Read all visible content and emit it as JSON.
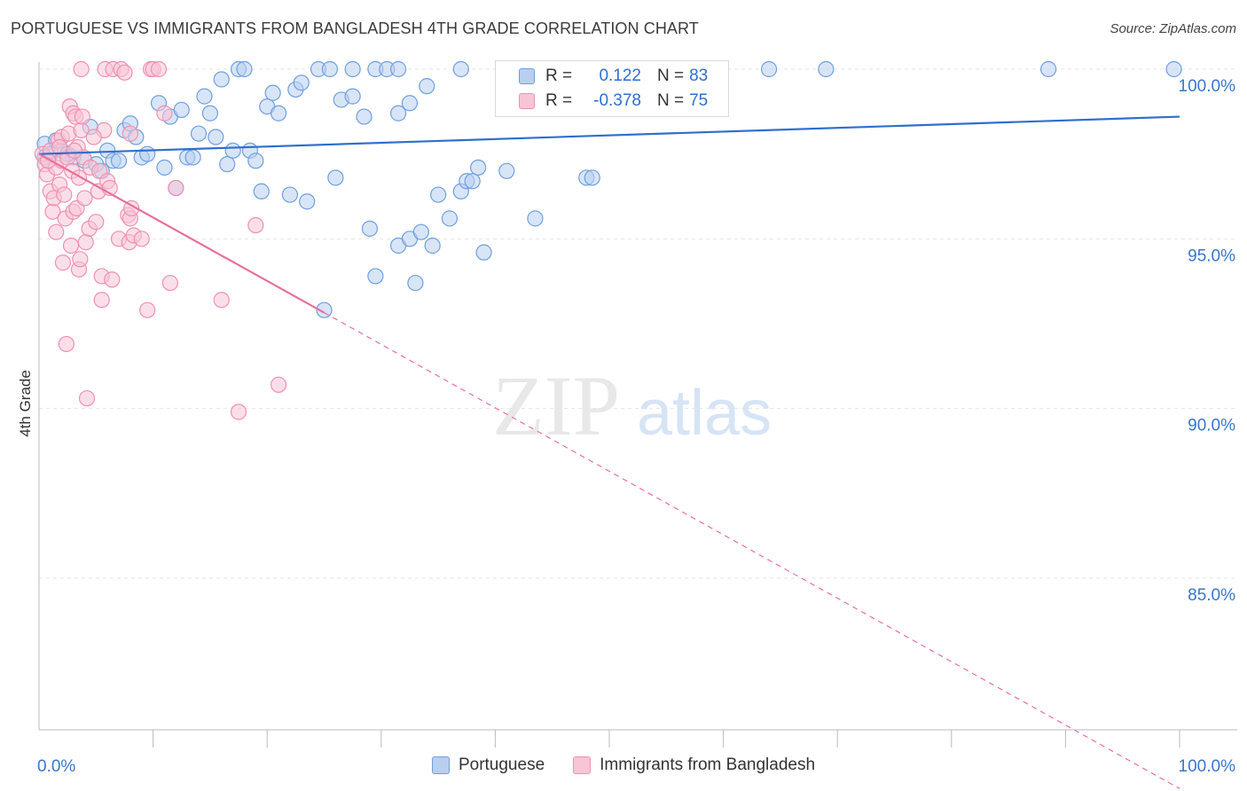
{
  "title": "PORTUGUESE VS IMMIGRANTS FROM BANGLADESH 4TH GRADE CORRELATION CHART",
  "source": "Source: ZipAtlas.com",
  "watermark": {
    "zip": "ZIP",
    "atlas": "atlas"
  },
  "legend_top": [
    {
      "r_label": "R =",
      "r_value": "0.122",
      "n_label": "N =",
      "n_value": "83",
      "color": "#6f9fe0"
    },
    {
      "r_label": "R =",
      "r_value": "-0.378",
      "n_label": "N =",
      "n_value": "75",
      "color": "#f090b0"
    }
  ],
  "legend_bottom": [
    {
      "label": "Portuguese",
      "color": "#6f9fe0"
    },
    {
      "label": "Immigrants from Bangladesh",
      "color": "#f090b0"
    }
  ],
  "colors": {
    "blue": "#2f6fce",
    "blue_fill": "#b8cff0",
    "pink": "#e8709a",
    "pink_fill": "#f8c4d6",
    "tick_label": "#3a76cc",
    "grid": "#e6e6e6"
  },
  "chart_data": {
    "type": "scatter",
    "title": "PORTUGUESE VS IMMIGRANTS FROM BANGLADESH 4TH GRADE CORRELATION CHART",
    "xlabel": "",
    "ylabel": "4th Grade",
    "xlim": [
      0,
      100
    ],
    "ylim": [
      80.5,
      100.5
    ],
    "x_tick_labels": [
      {
        "value": 0,
        "label": "0.0%"
      },
      {
        "value": 100,
        "label": "100.0%"
      }
    ],
    "y_ticks": [
      {
        "value": 100,
        "label": "100.0%"
      },
      {
        "value": 95,
        "label": "95.0%"
      },
      {
        "value": 90,
        "label": "90.0%"
      },
      {
        "value": 85,
        "label": "85.0%"
      }
    ],
    "grid": true,
    "series": [
      {
        "name": "Portuguese",
        "color": "#6f9fe0",
        "trend": {
          "x": [
            0,
            100
          ],
          "y": [
            97.5,
            98.6
          ],
          "dashed_from": null
        },
        "points": [
          [
            0.5,
            97.8
          ],
          [
            1.0,
            97.5
          ],
          [
            1.5,
            97.9
          ],
          [
            2.0,
            97.6
          ],
          [
            3.0,
            97.4
          ],
          [
            4.0,
            97.3
          ],
          [
            4.5,
            98.3
          ],
          [
            5.0,
            97.2
          ],
          [
            5.5,
            97.0
          ],
          [
            6.0,
            97.6
          ],
          [
            6.5,
            97.3
          ],
          [
            7.0,
            97.3
          ],
          [
            7.5,
            98.2
          ],
          [
            8.0,
            98.4
          ],
          [
            8.5,
            98.0
          ],
          [
            9.0,
            97.4
          ],
          [
            9.5,
            97.5
          ],
          [
            10.5,
            99.0
          ],
          [
            11.0,
            97.1
          ],
          [
            11.5,
            98.6
          ],
          [
            12.0,
            96.5
          ],
          [
            12.5,
            98.8
          ],
          [
            13.0,
            97.4
          ],
          [
            13.5,
            97.4
          ],
          [
            14.0,
            98.1
          ],
          [
            14.5,
            99.2
          ],
          [
            15.0,
            98.7
          ],
          [
            15.5,
            98.0
          ],
          [
            16.0,
            99.7
          ],
          [
            16.5,
            97.2
          ],
          [
            17.0,
            97.6
          ],
          [
            17.5,
            100.0
          ],
          [
            18.0,
            100.0
          ],
          [
            18.5,
            97.6
          ],
          [
            19.0,
            97.3
          ],
          [
            19.5,
            96.4
          ],
          [
            20.0,
            98.9
          ],
          [
            20.5,
            99.3
          ],
          [
            21.0,
            98.7
          ],
          [
            22.0,
            96.3
          ],
          [
            22.5,
            99.4
          ],
          [
            23.0,
            99.6
          ],
          [
            23.5,
            96.1
          ],
          [
            24.5,
            100.0
          ],
          [
            25.5,
            100.0
          ],
          [
            25.0,
            92.9
          ],
          [
            26.0,
            96.8
          ],
          [
            26.5,
            99.1
          ],
          [
            27.5,
            100.0
          ],
          [
            27.5,
            99.2
          ],
          [
            28.5,
            98.6
          ],
          [
            29.0,
            95.3
          ],
          [
            29.5,
            93.9
          ],
          [
            29.5,
            100.0
          ],
          [
            30.5,
            100.0
          ],
          [
            31.5,
            100.0
          ],
          [
            31.5,
            98.7
          ],
          [
            31.5,
            94.8
          ],
          [
            32.5,
            99.0
          ],
          [
            32.5,
            95.0
          ],
          [
            33.0,
            93.7
          ],
          [
            33.5,
            95.2
          ],
          [
            34.0,
            99.5
          ],
          [
            34.5,
            94.8
          ],
          [
            35.0,
            96.3
          ],
          [
            36.0,
            95.6
          ],
          [
            37.0,
            100.0
          ],
          [
            37.0,
            96.4
          ],
          [
            37.5,
            96.7
          ],
          [
            38.0,
            96.7
          ],
          [
            38.5,
            97.1
          ],
          [
            39.0,
            94.6
          ],
          [
            41.0,
            97.0
          ],
          [
            43.5,
            95.6
          ],
          [
            45.0,
            100.0
          ],
          [
            48.0,
            96.8
          ],
          [
            48.5,
            96.8
          ],
          [
            64.0,
            100.0
          ],
          [
            69.0,
            100.0
          ],
          [
            88.5,
            100.0
          ],
          [
            99.5,
            100.0
          ],
          [
            0.5,
            97.4
          ],
          [
            2.5,
            97.5
          ]
        ]
      },
      {
        "name": "Immigrants from Bangladesh",
        "color": "#f090b0",
        "trend": {
          "x": [
            0,
            100
          ],
          "y": [
            97.5,
            78.8
          ],
          "solid_until": 25,
          "dashed_from": 25
        },
        "points": [
          [
            0.3,
            97.5
          ],
          [
            0.5,
            97.2
          ],
          [
            0.7,
            96.9
          ],
          [
            1.0,
            97.6
          ],
          [
            1.0,
            96.4
          ],
          [
            1.2,
            95.8
          ],
          [
            1.3,
            96.2
          ],
          [
            1.5,
            97.1
          ],
          [
            1.5,
            95.2
          ],
          [
            1.7,
            97.9
          ],
          [
            1.8,
            96.6
          ],
          [
            2.0,
            98.0
          ],
          [
            2.0,
            97.3
          ],
          [
            2.1,
            94.3
          ],
          [
            2.2,
            96.3
          ],
          [
            2.3,
            95.6
          ],
          [
            2.4,
            91.9
          ],
          [
            2.5,
            97.4
          ],
          [
            2.6,
            98.1
          ],
          [
            2.7,
            98.9
          ],
          [
            2.8,
            94.8
          ],
          [
            2.9,
            97.0
          ],
          [
            3.0,
            98.7
          ],
          [
            3.0,
            95.8
          ],
          [
            3.2,
            98.6
          ],
          [
            3.3,
            95.9
          ],
          [
            3.4,
            97.7
          ],
          [
            3.5,
            94.1
          ],
          [
            3.5,
            96.8
          ],
          [
            3.6,
            94.4
          ],
          [
            3.7,
            100.0
          ],
          [
            3.7,
            98.2
          ],
          [
            3.8,
            98.6
          ],
          [
            3.9,
            97.4
          ],
          [
            4.0,
            96.2
          ],
          [
            4.1,
            94.9
          ],
          [
            4.2,
            90.3
          ],
          [
            4.4,
            95.3
          ],
          [
            4.5,
            97.1
          ],
          [
            5.0,
            95.5
          ],
          [
            5.2,
            96.4
          ],
          [
            5.3,
            97.0
          ],
          [
            5.5,
            93.2
          ],
          [
            5.5,
            93.9
          ],
          [
            5.7,
            98.2
          ],
          [
            5.8,
            100.0
          ],
          [
            6.0,
            96.7
          ],
          [
            6.2,
            96.5
          ],
          [
            6.4,
            93.8
          ],
          [
            6.5,
            100.0
          ],
          [
            7.0,
            95.0
          ],
          [
            7.2,
            100.0
          ],
          [
            7.5,
            99.9
          ],
          [
            7.8,
            95.7
          ],
          [
            7.9,
            94.9
          ],
          [
            8.0,
            98.1
          ],
          [
            8.0,
            95.6
          ],
          [
            8.1,
            95.9
          ],
          [
            8.3,
            95.1
          ],
          [
            9.0,
            95.0
          ],
          [
            9.5,
            92.9
          ],
          [
            9.8,
            100.0
          ],
          [
            10.0,
            100.0
          ],
          [
            10.5,
            100.0
          ],
          [
            11.0,
            98.7
          ],
          [
            11.5,
            93.7
          ],
          [
            12.0,
            96.5
          ],
          [
            16.0,
            93.2
          ],
          [
            17.5,
            89.9
          ],
          [
            19.0,
            95.4
          ],
          [
            21.0,
            90.7
          ],
          [
            1.8,
            97.7
          ],
          [
            0.8,
            97.3
          ],
          [
            3.1,
            97.6
          ],
          [
            4.8,
            98.0
          ]
        ]
      }
    ]
  }
}
